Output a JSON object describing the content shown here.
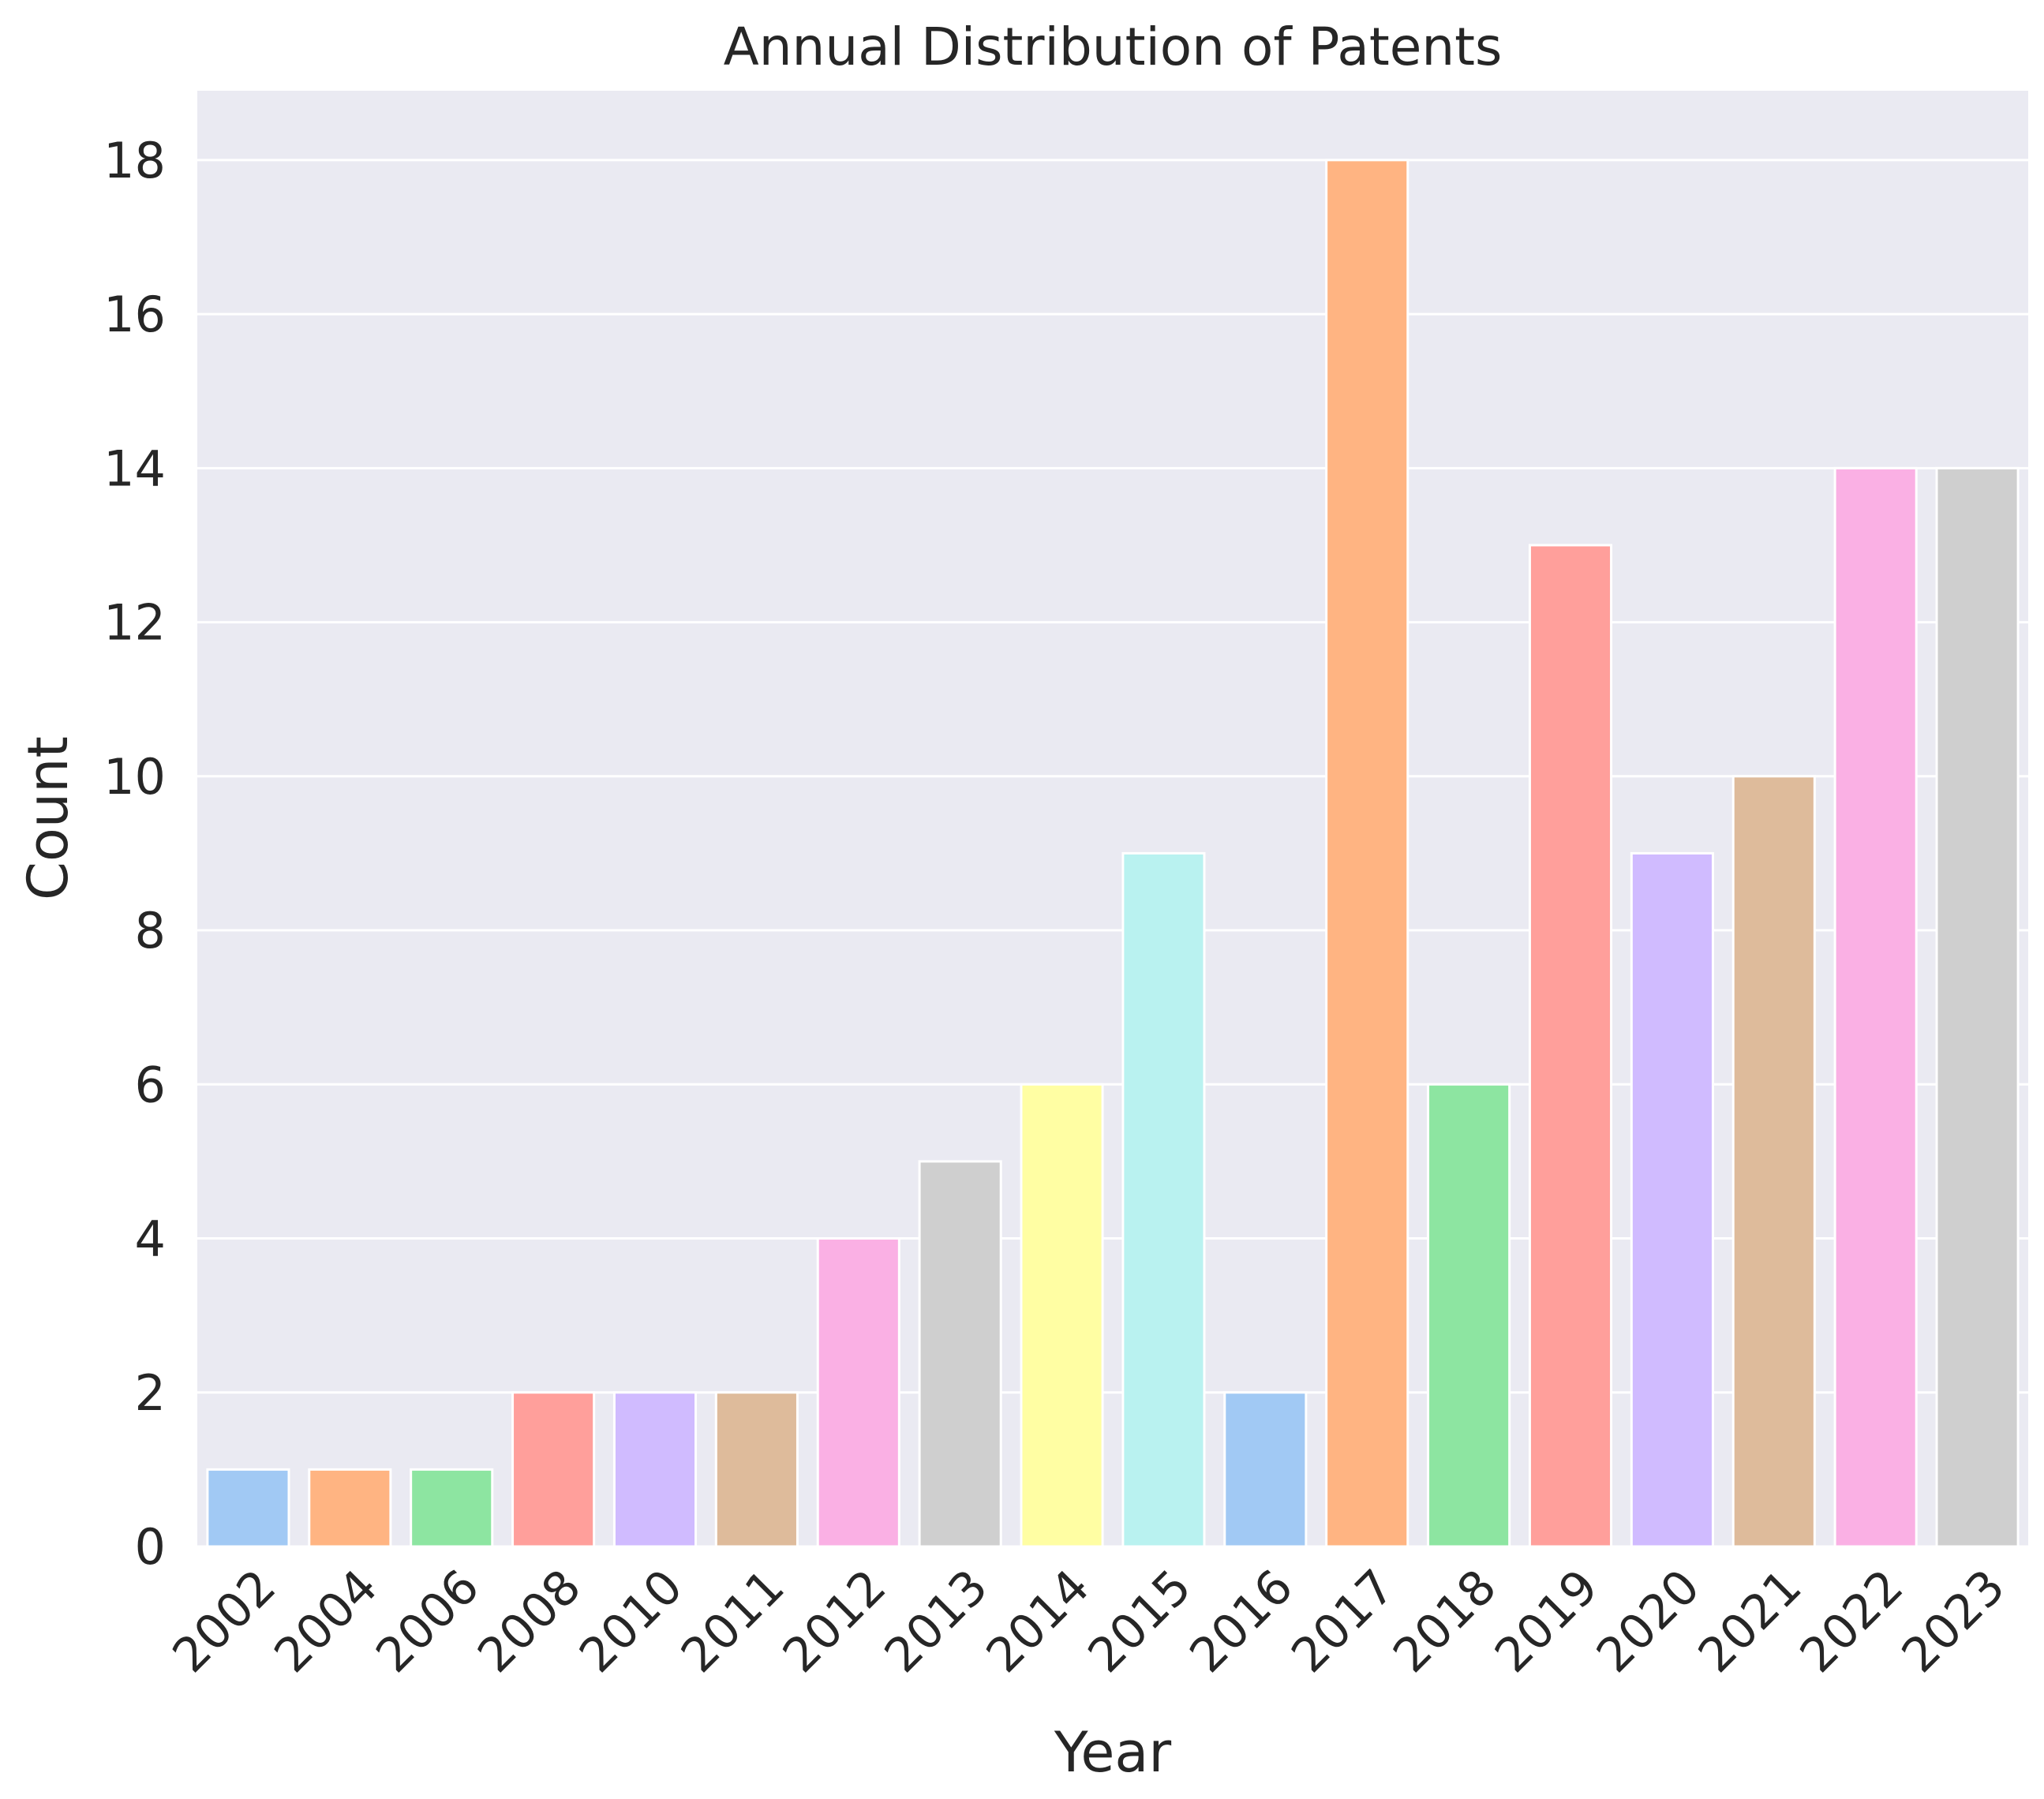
{
  "chart_data": {
    "type": "bar",
    "title": "Annual Distribution of Patents",
    "xlabel": "Year",
    "ylabel": "Count",
    "categories": [
      "2002",
      "2004",
      "2006",
      "2008",
      "2010",
      "2011",
      "2012",
      "2013",
      "2014",
      "2015",
      "2016",
      "2017",
      "2018",
      "2019",
      "2020",
      "2021",
      "2022",
      "2023"
    ],
    "values": [
      1,
      1,
      1,
      2,
      2,
      2,
      4,
      5,
      6,
      9,
      2,
      18,
      6,
      13,
      9,
      10,
      14,
      14
    ],
    "colors": [
      "#a1c9f4",
      "#ffb482",
      "#8de5a1",
      "#ff9f9b",
      "#d0bbff",
      "#debb9b",
      "#fab0e4",
      "#cfcfcf",
      "#fffea3",
      "#b9f2f0",
      "#a1c9f4",
      "#ffb482",
      "#8de5a1",
      "#ff9f9b",
      "#d0bbff",
      "#debb9b",
      "#fab0e4",
      "#cfcfcf"
    ],
    "yticks": [
      "0",
      "2",
      "4",
      "6",
      "8",
      "10",
      "12",
      "14",
      "16",
      "18"
    ],
    "ylim": [
      0,
      18.9
    ],
    "grid": true,
    "background": "#eaeaf2",
    "grid_color": "#ffffff"
  }
}
